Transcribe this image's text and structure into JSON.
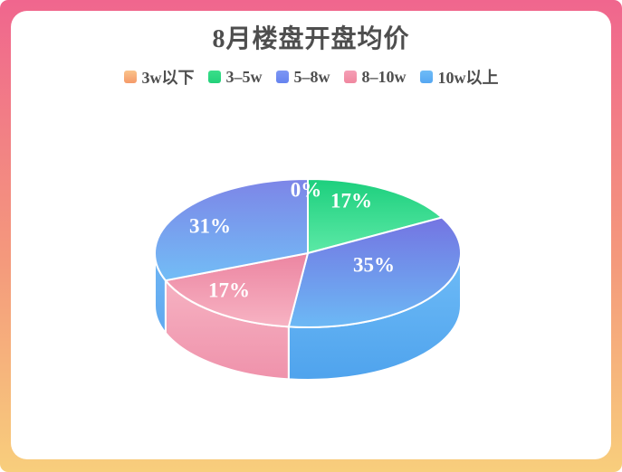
{
  "title": "8月楼盘开盘均价",
  "frame": {
    "border_gradient": [
      "#F0668E",
      "#F4997C",
      "#F8CE7C"
    ],
    "card_background": "#FFFFFF"
  },
  "legend": [
    {
      "label": "3w以下",
      "colors": [
        "#FAC38B",
        "#F59A69"
      ]
    },
    {
      "label": "3–5w",
      "colors": [
        "#3ADF8A",
        "#23D07A"
      ]
    },
    {
      "label": "5–8w",
      "colors": [
        "#7D97F4",
        "#6583EF"
      ]
    },
    {
      "label": "8–10w",
      "colors": [
        "#F59FB6",
        "#F0879F"
      ]
    },
    {
      "label": "10w以上",
      "colors": [
        "#6FBCF7",
        "#55A7F2"
      ]
    }
  ],
  "chart_data": {
    "type": "pie",
    "style": "3d",
    "title": "8月楼盘开盘均价",
    "legend_position": "top",
    "direction": "clockwise",
    "start_angle_deg": 0,
    "total": 100,
    "slices": [
      {
        "name": "3w以下",
        "value": 0,
        "label": "0%",
        "color_top": [
          "#F6A96E",
          "#FBC98A"
        ],
        "color_side": [
          "#F8B97F",
          "#F3A066"
        ]
      },
      {
        "name": "3–5w",
        "value": 17,
        "label": "17%",
        "color_top": [
          "#1CCF7D",
          "#5CE9A6"
        ],
        "color_side": [
          "#34DE8C",
          "#22CE7B"
        ]
      },
      {
        "name": "5–8w",
        "value": 35,
        "label": "35%",
        "color_top": [
          "#7474E2",
          "#6CB9F5"
        ],
        "color_side": [
          "#6FBCF7",
          "#4FA3ED"
        ]
      },
      {
        "name": "8–10w",
        "value": 17,
        "label": "17%",
        "color_top": [
          "#EC85A1",
          "#F7B3C3"
        ],
        "color_side": [
          "#F6B2C2",
          "#EF92AB"
        ]
      },
      {
        "name": "10w以上",
        "value": 31,
        "label": "31%",
        "color_top": [
          "#7D85E7",
          "#72BDF6"
        ],
        "color_side": [
          "#6FB6F4",
          "#5FA8EF"
        ]
      }
    ]
  }
}
